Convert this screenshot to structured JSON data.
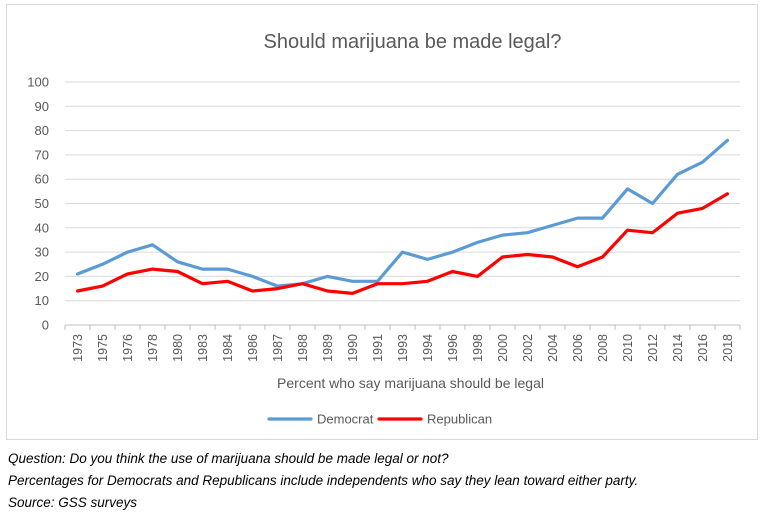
{
  "chart_data": {
    "type": "line",
    "title": "Should marijuana be made legal?",
    "xlabel": "Percent who say marijuana should be legal",
    "ylabel": "",
    "ylim": [
      0,
      100
    ],
    "yticks": [
      0,
      10,
      20,
      30,
      40,
      50,
      60,
      70,
      80,
      90,
      100
    ],
    "grid": true,
    "legend_position": "bottom",
    "categories": [
      "1973",
      "1975",
      "1976",
      "1978",
      "1980",
      "1983",
      "1984",
      "1986",
      "1987",
      "1988",
      "1989",
      "1990",
      "1991",
      "1993",
      "1994",
      "1996",
      "1998",
      "2000",
      "2002",
      "2004",
      "2006",
      "2008",
      "2010",
      "2012",
      "2014",
      "2016",
      "2018"
    ],
    "series": [
      {
        "name": "Democrat",
        "color": "#5b9bd5",
        "values": [
          21,
          25,
          30,
          33,
          26,
          23,
          23,
          20,
          16,
          17,
          20,
          18,
          18,
          30,
          27,
          30,
          34,
          37,
          38,
          41,
          44,
          44,
          56,
          50,
          62,
          67,
          76
        ]
      },
      {
        "name": "Republican",
        "color": "#ff0000",
        "values": [
          14,
          16,
          21,
          23,
          22,
          17,
          18,
          14,
          15,
          17,
          14,
          13,
          17,
          17,
          18,
          22,
          20,
          28,
          29,
          28,
          24,
          28,
          39,
          38,
          46,
          48,
          54
        ]
      }
    ]
  },
  "notes": {
    "question": "Question: Do you think the use of marijuana should be made legal or not?",
    "independents": "Percentages for Democrats and Republicans include independents who say they lean toward either party.",
    "source": "Source: GSS surveys"
  }
}
